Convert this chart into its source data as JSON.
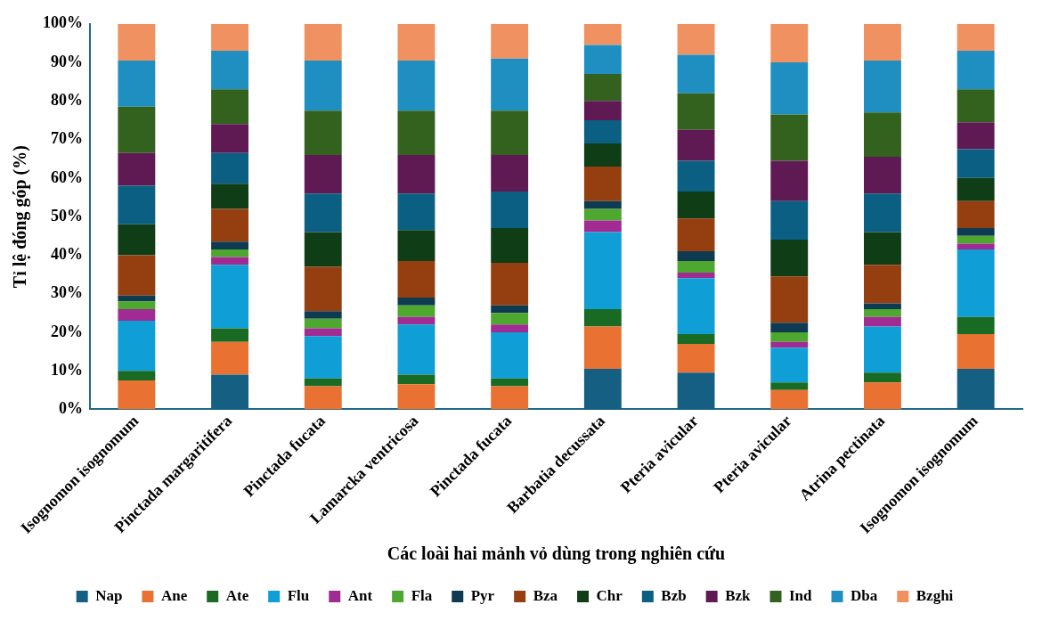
{
  "chart_data": {
    "type": "bar",
    "stacked": true,
    "xlabel": "Các loài hai mảnh vỏ dùng trong nghiên cứu",
    "ylabel": "Tỉ lệ đóng góp (%)",
    "categories": [
      "Isognomon isognomum",
      "Pinctada margaritifera",
      "Pinctada fucata",
      "Lamarcka ventricosa",
      "Pinctada fucata",
      "Barbatia decussata",
      "Pteria avicular",
      "Pteria avicular",
      "Atrina pectinata",
      "Isognomon isognomum"
    ],
    "ylim": [
      0,
      100
    ],
    "yticks": [
      {
        "value": 0,
        "label": "0%"
      },
      {
        "value": 10,
        "label": "10%"
      },
      {
        "value": 20,
        "label": "20%"
      },
      {
        "value": 30,
        "label": "30%"
      },
      {
        "value": 40,
        "label": "40%"
      },
      {
        "value": 50,
        "label": "50%"
      },
      {
        "value": 60,
        "label": "60%"
      },
      {
        "value": 70,
        "label": "70%"
      },
      {
        "value": 80,
        "label": "80%"
      },
      {
        "value": 90,
        "label": "90%"
      },
      {
        "value": 100,
        "label": "100%"
      }
    ],
    "grid": false,
    "legend": "bottom",
    "series": [
      {
        "name": "Nap",
        "color": "#156082",
        "values": [
          0,
          9,
          0,
          0,
          0,
          10.5,
          9.5,
          0,
          0,
          10.5
        ]
      },
      {
        "name": "Ane",
        "color": "#e97132",
        "values": [
          7.5,
          8.5,
          6,
          6.5,
          6,
          11,
          7.5,
          5,
          7,
          9
        ]
      },
      {
        "name": "Ate",
        "color": "#196b24",
        "values": [
          2.5,
          3.5,
          2,
          2.5,
          2,
          4.5,
          2.5,
          2,
          2.5,
          4.5
        ]
      },
      {
        "name": "Flu",
        "color": "#0f9ed5",
        "values": [
          13,
          16.5,
          11,
          13,
          12,
          20,
          14.5,
          9,
          12,
          17.5
        ]
      },
      {
        "name": "Ant",
        "color": "#a02b93",
        "values": [
          3,
          2,
          2,
          2,
          2,
          3,
          1.5,
          1.5,
          2.5,
          1.5
        ]
      },
      {
        "name": "Fla",
        "color": "#4ea72e",
        "values": [
          2,
          2,
          2.5,
          3,
          3,
          3,
          3,
          2.5,
          2,
          2
        ]
      },
      {
        "name": "Pyr",
        "color": "#0e3a52",
        "values": [
          1.5,
          2,
          2,
          2,
          2,
          2,
          2.5,
          2.5,
          1.5,
          2
        ]
      },
      {
        "name": "Bza",
        "color": "#953f10",
        "values": [
          10.5,
          8.5,
          11.5,
          9.5,
          11,
          9,
          8.5,
          12,
          10,
          7
        ]
      },
      {
        "name": "Chr",
        "color": "#0f3d16",
        "values": [
          8,
          6.5,
          9,
          8,
          9,
          6,
          7,
          9.5,
          8.5,
          6
        ]
      },
      {
        "name": "Bzb",
        "color": "#0b5f82",
        "values": [
          10,
          8,
          10,
          9.5,
          9.5,
          6,
          8,
          10,
          10,
          7.5
        ]
      },
      {
        "name": "Bzk",
        "color": "#5f1a54",
        "values": [
          8.5,
          7.5,
          10,
          10,
          9.5,
          5,
          8,
          10.5,
          9.5,
          7
        ]
      },
      {
        "name": "Ind",
        "color": "#32621d",
        "values": [
          12,
          9,
          11.5,
          11.5,
          11.5,
          7,
          9.5,
          12,
          11.5,
          8.5
        ]
      },
      {
        "name": "Dba",
        "color": "#1f8fc2",
        "values": [
          12,
          10,
          13,
          13,
          13.5,
          7.5,
          10,
          13.5,
          13.5,
          10
        ]
      },
      {
        "name": "Bzghi",
        "color": "#ef9160",
        "values": [
          9.5,
          7,
          9.5,
          9.5,
          9,
          5.5,
          8,
          10,
          9.5,
          7
        ]
      }
    ]
  }
}
